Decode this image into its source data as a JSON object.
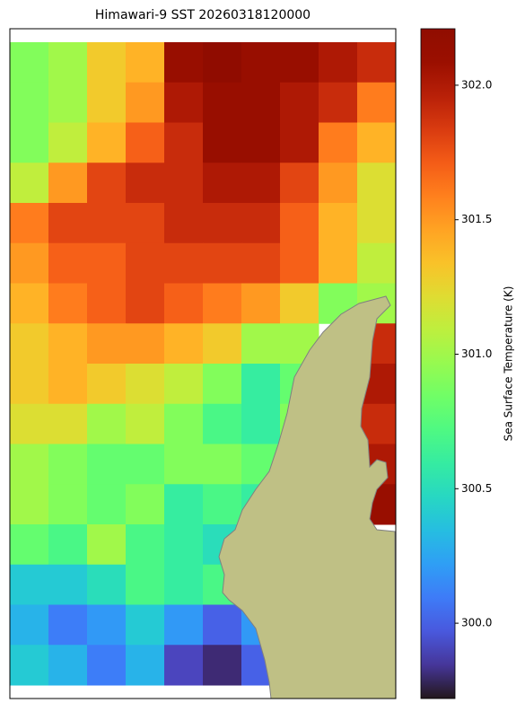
{
  "chart_data": {
    "type": "heatmap",
    "title": "Himawari-9 SST 20260318120000",
    "colormap": "turbo",
    "colorbar_label": "Sea Surface Temperature (K)",
    "vlim": [
      299.72,
      302.21
    ],
    "cticks": [
      {
        "value": 300.0,
        "label": "300.0"
      },
      {
        "value": 300.5,
        "label": "300.5"
      },
      {
        "value": 301.0,
        "label": "301.0"
      },
      {
        "value": 301.5,
        "label": "301.5"
      },
      {
        "value": 302.0,
        "label": "302.0"
      }
    ],
    "z": [
      [
        300.9,
        301.0,
        301.3,
        301.4,
        302.1,
        302.2,
        302.1,
        302.1,
        302.0,
        301.9
      ],
      [
        300.9,
        301.0,
        301.3,
        301.5,
        302.0,
        302.1,
        302.1,
        302.0,
        301.9,
        301.6
      ],
      [
        300.9,
        301.1,
        301.4,
        301.7,
        301.9,
        302.1,
        302.1,
        302.0,
        301.6,
        301.4
      ],
      [
        301.1,
        301.5,
        301.8,
        301.9,
        301.9,
        302.0,
        302.0,
        301.8,
        301.5,
        301.2
      ],
      [
        301.6,
        301.8,
        301.8,
        301.8,
        301.9,
        301.9,
        301.9,
        301.7,
        301.4,
        301.2
      ],
      [
        301.5,
        301.7,
        301.7,
        301.8,
        301.8,
        301.8,
        301.8,
        301.7,
        301.4,
        301.1
      ],
      [
        301.4,
        301.6,
        301.7,
        301.8,
        301.7,
        301.6,
        301.5,
        301.3,
        300.9,
        301.0
      ],
      [
        301.3,
        301.4,
        301.5,
        301.5,
        301.4,
        301.3,
        301.0,
        301.0,
        null,
        301.9
      ],
      [
        301.3,
        301.4,
        301.3,
        301.2,
        301.1,
        300.9,
        300.6,
        300.8,
        null,
        302.0
      ],
      [
        301.2,
        301.2,
        301.0,
        301.1,
        300.9,
        300.7,
        300.6,
        300.9,
        null,
        301.9
      ],
      [
        301.0,
        300.9,
        300.8,
        300.8,
        300.9,
        300.9,
        300.8,
        null,
        null,
        302.0
      ],
      [
        301.0,
        300.9,
        300.8,
        300.9,
        300.6,
        300.7,
        300.6,
        null,
        null,
        302.1
      ],
      [
        300.8,
        300.7,
        301.0,
        300.7,
        300.6,
        300.5,
        null,
        null,
        null,
        null
      ],
      [
        300.4,
        300.4,
        300.5,
        300.7,
        300.6,
        300.7,
        null,
        null,
        null,
        null
      ],
      [
        300.3,
        300.1,
        300.2,
        300.4,
        300.2,
        300.0,
        300.2,
        null,
        null,
        null
      ],
      [
        300.4,
        300.3,
        300.1,
        300.3,
        299.9,
        299.8,
        300.0,
        null,
        null,
        null
      ]
    ]
  }
}
